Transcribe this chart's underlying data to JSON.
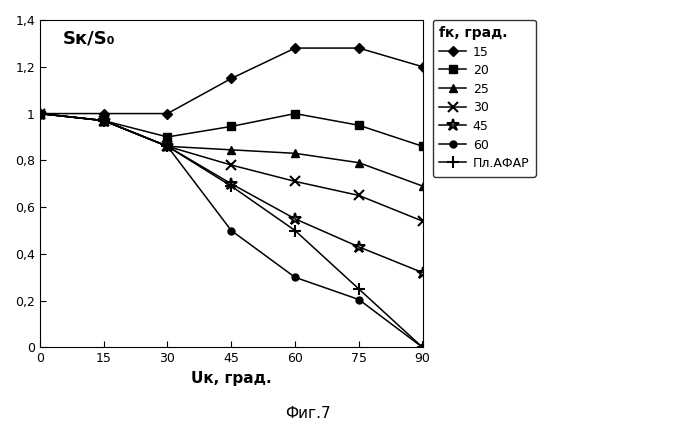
{
  "x": [
    0,
    15,
    30,
    45,
    60,
    75,
    90
  ],
  "series": {
    "15": [
      1.0,
      1.0,
      1.0,
      1.15,
      1.28,
      1.28,
      1.2
    ],
    "20": [
      1.0,
      0.97,
      0.9,
      0.945,
      1.0,
      0.95,
      0.86
    ],
    "25": [
      1.0,
      0.97,
      0.86,
      0.845,
      0.83,
      0.79,
      0.69
    ],
    "30": [
      1.0,
      0.97,
      0.86,
      0.78,
      0.71,
      0.65,
      0.54
    ],
    "45": [
      1.0,
      0.97,
      0.86,
      0.7,
      0.55,
      0.43,
      0.32
    ],
    "60": [
      1.0,
      0.97,
      0.86,
      0.5,
      0.3,
      0.205,
      0.0
    ],
    "Пл.АФАР": [
      1.0,
      0.97,
      0.86,
      0.69,
      0.5,
      0.25,
      0.0
    ]
  },
  "markers": {
    "15": "D",
    "20": "s",
    "25": "^",
    "30": "x",
    "45": "*",
    "60": "o",
    "Пл.АФАР": "+"
  },
  "marker_sizes": {
    "15": 5,
    "20": 6,
    "25": 6,
    "30": 7,
    "45": 9,
    "60": 5,
    "Пл.АФАР": 8
  },
  "filled_markers": [
    "D",
    "s",
    "^",
    "o"
  ],
  "series_order": [
    "15",
    "20",
    "25",
    "30",
    "45",
    "60",
    "Пл.АФАР"
  ],
  "ylabel_text": "Sк/S₀",
  "xlabel": "Uк, град.",
  "legend_title": "fк, град.",
  "figure_caption": "Фиг.7",
  "yticks": [
    0,
    0.2,
    0.4,
    0.6,
    0.8,
    1.0,
    1.2,
    1.4
  ],
  "ytick_labels": [
    "0",
    "0,2",
    "0,4",
    "0,6",
    "0,8",
    "1",
    "1,2",
    "1,4"
  ],
  "xticks": [
    0,
    15,
    30,
    45,
    60,
    75,
    90
  ],
  "ylim": [
    0,
    1.4
  ],
  "xlim": [
    0,
    90
  ],
  "figsize": [
    6.99,
    4.22
  ],
  "dpi": 100
}
